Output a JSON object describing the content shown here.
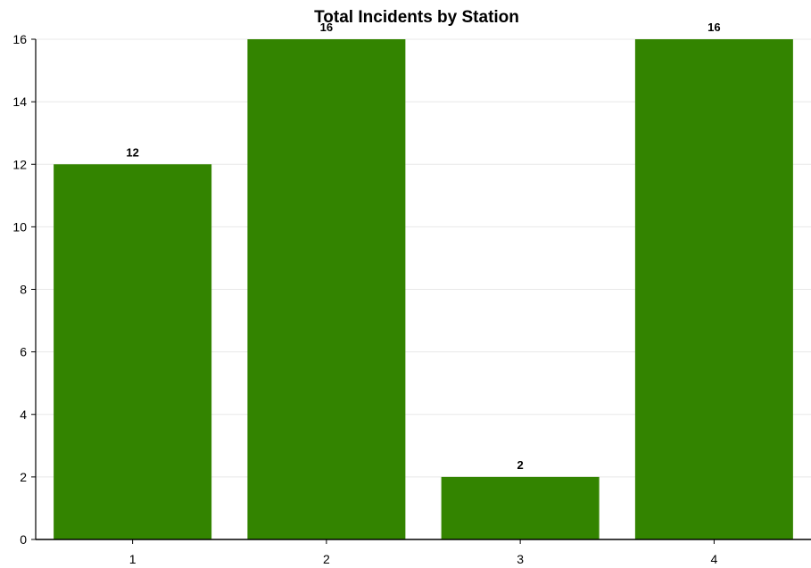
{
  "chart_data": {
    "type": "bar",
    "title": "Total Incidents by Station",
    "xlabel": "",
    "ylabel": "",
    "categories": [
      "1",
      "2",
      "3",
      "4"
    ],
    "values": [
      12,
      16,
      2,
      16
    ],
    "data_labels": [
      "12",
      "16",
      "2",
      "16"
    ],
    "ylim": [
      0,
      16
    ],
    "y_ticks": [
      "0",
      "2",
      "4",
      "6",
      "8",
      "10",
      "12",
      "14",
      "16"
    ],
    "grid": true,
    "legend": "none",
    "colors": {
      "bar": "#338400",
      "grid": "#e8e8e8",
      "axis": "#000000"
    }
  }
}
